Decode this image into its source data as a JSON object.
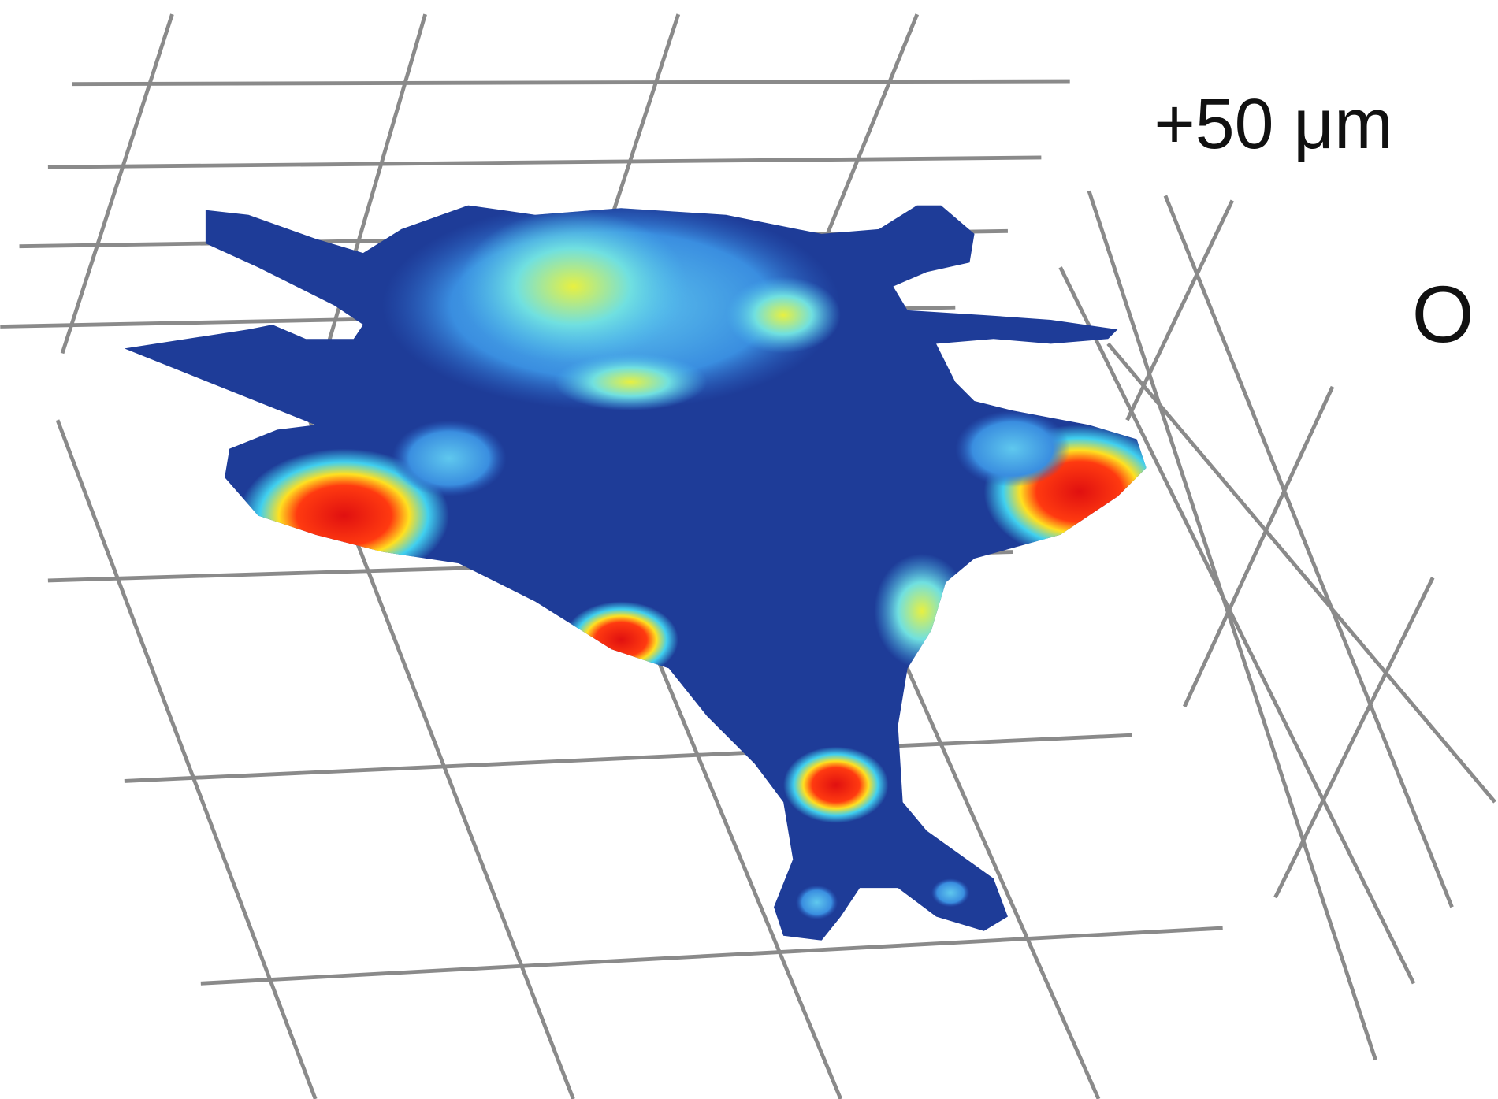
{
  "labels": {
    "scale": "+50 μm",
    "plane": "O"
  }
}
